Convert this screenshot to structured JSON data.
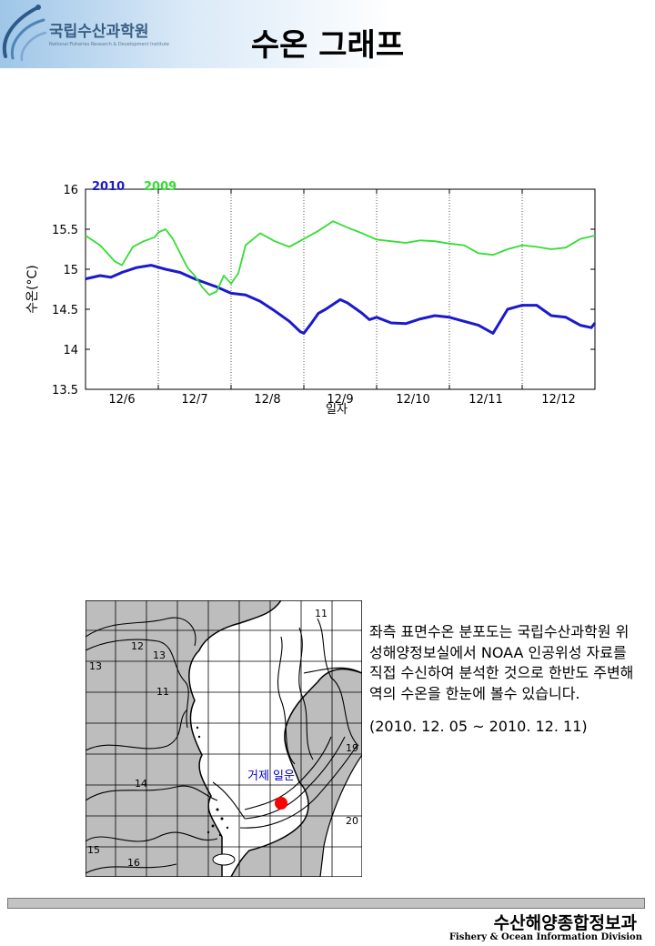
{
  "header": {
    "logo_text": "국립수산과학원",
    "logo_subtitle": "National Fisheries Research & Development Institute",
    "title": "수온 그래프"
  },
  "chart_data": {
    "type": "line",
    "ylabel": "수온(°C)",
    "xlabel": "일자",
    "ylim": [
      13.5,
      16
    ],
    "yticks": [
      13.5,
      14,
      14.5,
      15,
      15.5,
      16
    ],
    "xlim": [
      0,
      7
    ],
    "categories": [
      "12/6",
      "12/7",
      "12/8",
      "12/9",
      "12/10",
      "12/11",
      "12/12"
    ],
    "grid": "dotted vertical lines at day boundaries",
    "legend_position": "top-left",
    "series": [
      {
        "name": "2010",
        "color": "#1a1acc",
        "x": [
          0,
          0.2,
          0.35,
          0.5,
          0.7,
          0.9,
          1.1,
          1.3,
          1.5,
          1.8,
          2.0,
          2.2,
          2.4,
          2.6,
          2.8,
          2.95,
          3.0,
          3.1,
          3.2,
          3.3,
          3.5,
          3.6,
          3.8,
          3.9,
          4.0,
          4.2,
          4.4,
          4.6,
          4.8,
          5.0,
          5.2,
          5.4,
          5.6,
          5.8,
          6.0,
          6.2,
          6.4,
          6.6,
          6.8,
          6.95,
          7.0
        ],
        "values": [
          14.88,
          14.92,
          14.9,
          14.96,
          15.02,
          15.05,
          15.0,
          14.96,
          14.88,
          14.78,
          14.7,
          14.68,
          14.6,
          14.48,
          14.35,
          14.22,
          14.2,
          14.32,
          14.45,
          14.5,
          14.62,
          14.58,
          14.45,
          14.37,
          14.4,
          14.33,
          14.32,
          14.38,
          14.42,
          14.4,
          14.35,
          14.3,
          14.2,
          14.5,
          14.55,
          14.55,
          14.42,
          14.4,
          14.3,
          14.27,
          14.33
        ]
      },
      {
        "name": "2009",
        "color": "#33dd33",
        "x": [
          0,
          0.2,
          0.3,
          0.4,
          0.5,
          0.65,
          0.8,
          0.95,
          1.0,
          1.1,
          1.2,
          1.3,
          1.4,
          1.5,
          1.6,
          1.7,
          1.8,
          1.9,
          2.0,
          2.1,
          2.2,
          2.4,
          2.6,
          2.8,
          3.0,
          3.2,
          3.4,
          3.6,
          3.8,
          4.0,
          4.2,
          4.4,
          4.6,
          4.8,
          5.0,
          5.2,
          5.4,
          5.6,
          5.8,
          6.0,
          6.2,
          6.4,
          6.6,
          6.8,
          7.0
        ],
        "values": [
          15.42,
          15.3,
          15.2,
          15.1,
          15.05,
          15.28,
          15.35,
          15.4,
          15.46,
          15.5,
          15.38,
          15.2,
          15.02,
          14.92,
          14.78,
          14.68,
          14.72,
          14.92,
          14.82,
          14.95,
          15.3,
          15.45,
          15.35,
          15.28,
          15.38,
          15.48,
          15.6,
          15.52,
          15.45,
          15.37,
          15.35,
          15.33,
          15.36,
          15.35,
          15.32,
          15.3,
          15.2,
          15.18,
          15.25,
          15.3,
          15.28,
          15.25,
          15.27,
          15.38,
          15.42
        ]
      }
    ]
  },
  "map": {
    "location_label": "거제 일운",
    "contour_labels": [
      "11",
      "12",
      "13",
      "11",
      "14",
      "15",
      "16",
      "19",
      "20",
      "13"
    ]
  },
  "description": {
    "text": "좌측 표면수온 분포도는 국립수산과학원 위성해양정보실에서 NOAA 인공위성 자료를 직접 수신하여 분석한 것으로 한반도 주변해역의 수온을 한눈에 볼수 있습니다.",
    "date_range": "(2010. 12. 05 ~ 2010. 12. 11)"
  },
  "footer": {
    "org_ko": "수산해양종합정보과",
    "org_en": "Fishery & Ocean Information Division"
  }
}
